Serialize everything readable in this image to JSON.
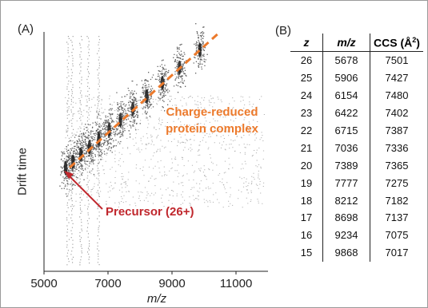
{
  "panel_a_label": "(A)",
  "panel_b_label": "(B)",
  "chart_data": {
    "type": "scatter",
    "xlabel": "m/z",
    "ylabel": "Drift time",
    "xlim": [
      5000,
      12000
    ],
    "xticks": [
      5000,
      7000,
      9000,
      11000
    ],
    "y_tick_labels_shown": false,
    "fit_line": {
      "x": [
        5700,
        10500
      ],
      "style": "dashed",
      "color": "#ec7a2c"
    },
    "series": [
      {
        "values": [
          {
            "z": 26,
            "mz": 5678
          },
          {
            "z": 25,
            "mz": 5906
          },
          {
            "z": 24,
            "mz": 6154
          },
          {
            "z": 23,
            "mz": 6422
          },
          {
            "z": 22,
            "mz": 6715
          },
          {
            "z": 21,
            "mz": 7036
          },
          {
            "z": 20,
            "mz": 7389
          },
          {
            "z": 19,
            "mz": 7777
          },
          {
            "z": 18,
            "mz": 8212
          },
          {
            "z": 17,
            "mz": 8698
          },
          {
            "z": 16,
            "mz": 9234
          },
          {
            "z": 15,
            "mz": 9868
          }
        ]
      }
    ],
    "annotations": [
      {
        "text": "Charge-reduced",
        "color": "#ec7a2c"
      },
      {
        "text": "protein complex",
        "color": "#ec7a2c"
      },
      {
        "text": "Precursor (26+)",
        "color": "#c0272d"
      }
    ]
  },
  "table": {
    "headers": {
      "z": "z",
      "mz": "m/z",
      "ccs": "CCS (Å",
      "ccs_sup": "2",
      "ccs_close": ")"
    },
    "rows": [
      {
        "z": "26",
        "mz": "5678",
        "ccs": "7501"
      },
      {
        "z": "25",
        "mz": "5906",
        "ccs": "7427"
      },
      {
        "z": "24",
        "mz": "6154",
        "ccs": "7480"
      },
      {
        "z": "23",
        "mz": "6422",
        "ccs": "7402"
      },
      {
        "z": "22",
        "mz": "6715",
        "ccs": "7387"
      },
      {
        "z": "21",
        "mz": "7036",
        "ccs": "7336"
      },
      {
        "z": "20",
        "mz": "7389",
        "ccs": "7365"
      },
      {
        "z": "19",
        "mz": "7777",
        "ccs": "7275"
      },
      {
        "z": "18",
        "mz": "8212",
        "ccs": "7182"
      },
      {
        "z": "17",
        "mz": "8698",
        "ccs": "7137"
      },
      {
        "z": "16",
        "mz": "9234",
        "ccs": "7075"
      },
      {
        "z": "15",
        "mz": "9868",
        "ccs": "7017"
      }
    ]
  }
}
